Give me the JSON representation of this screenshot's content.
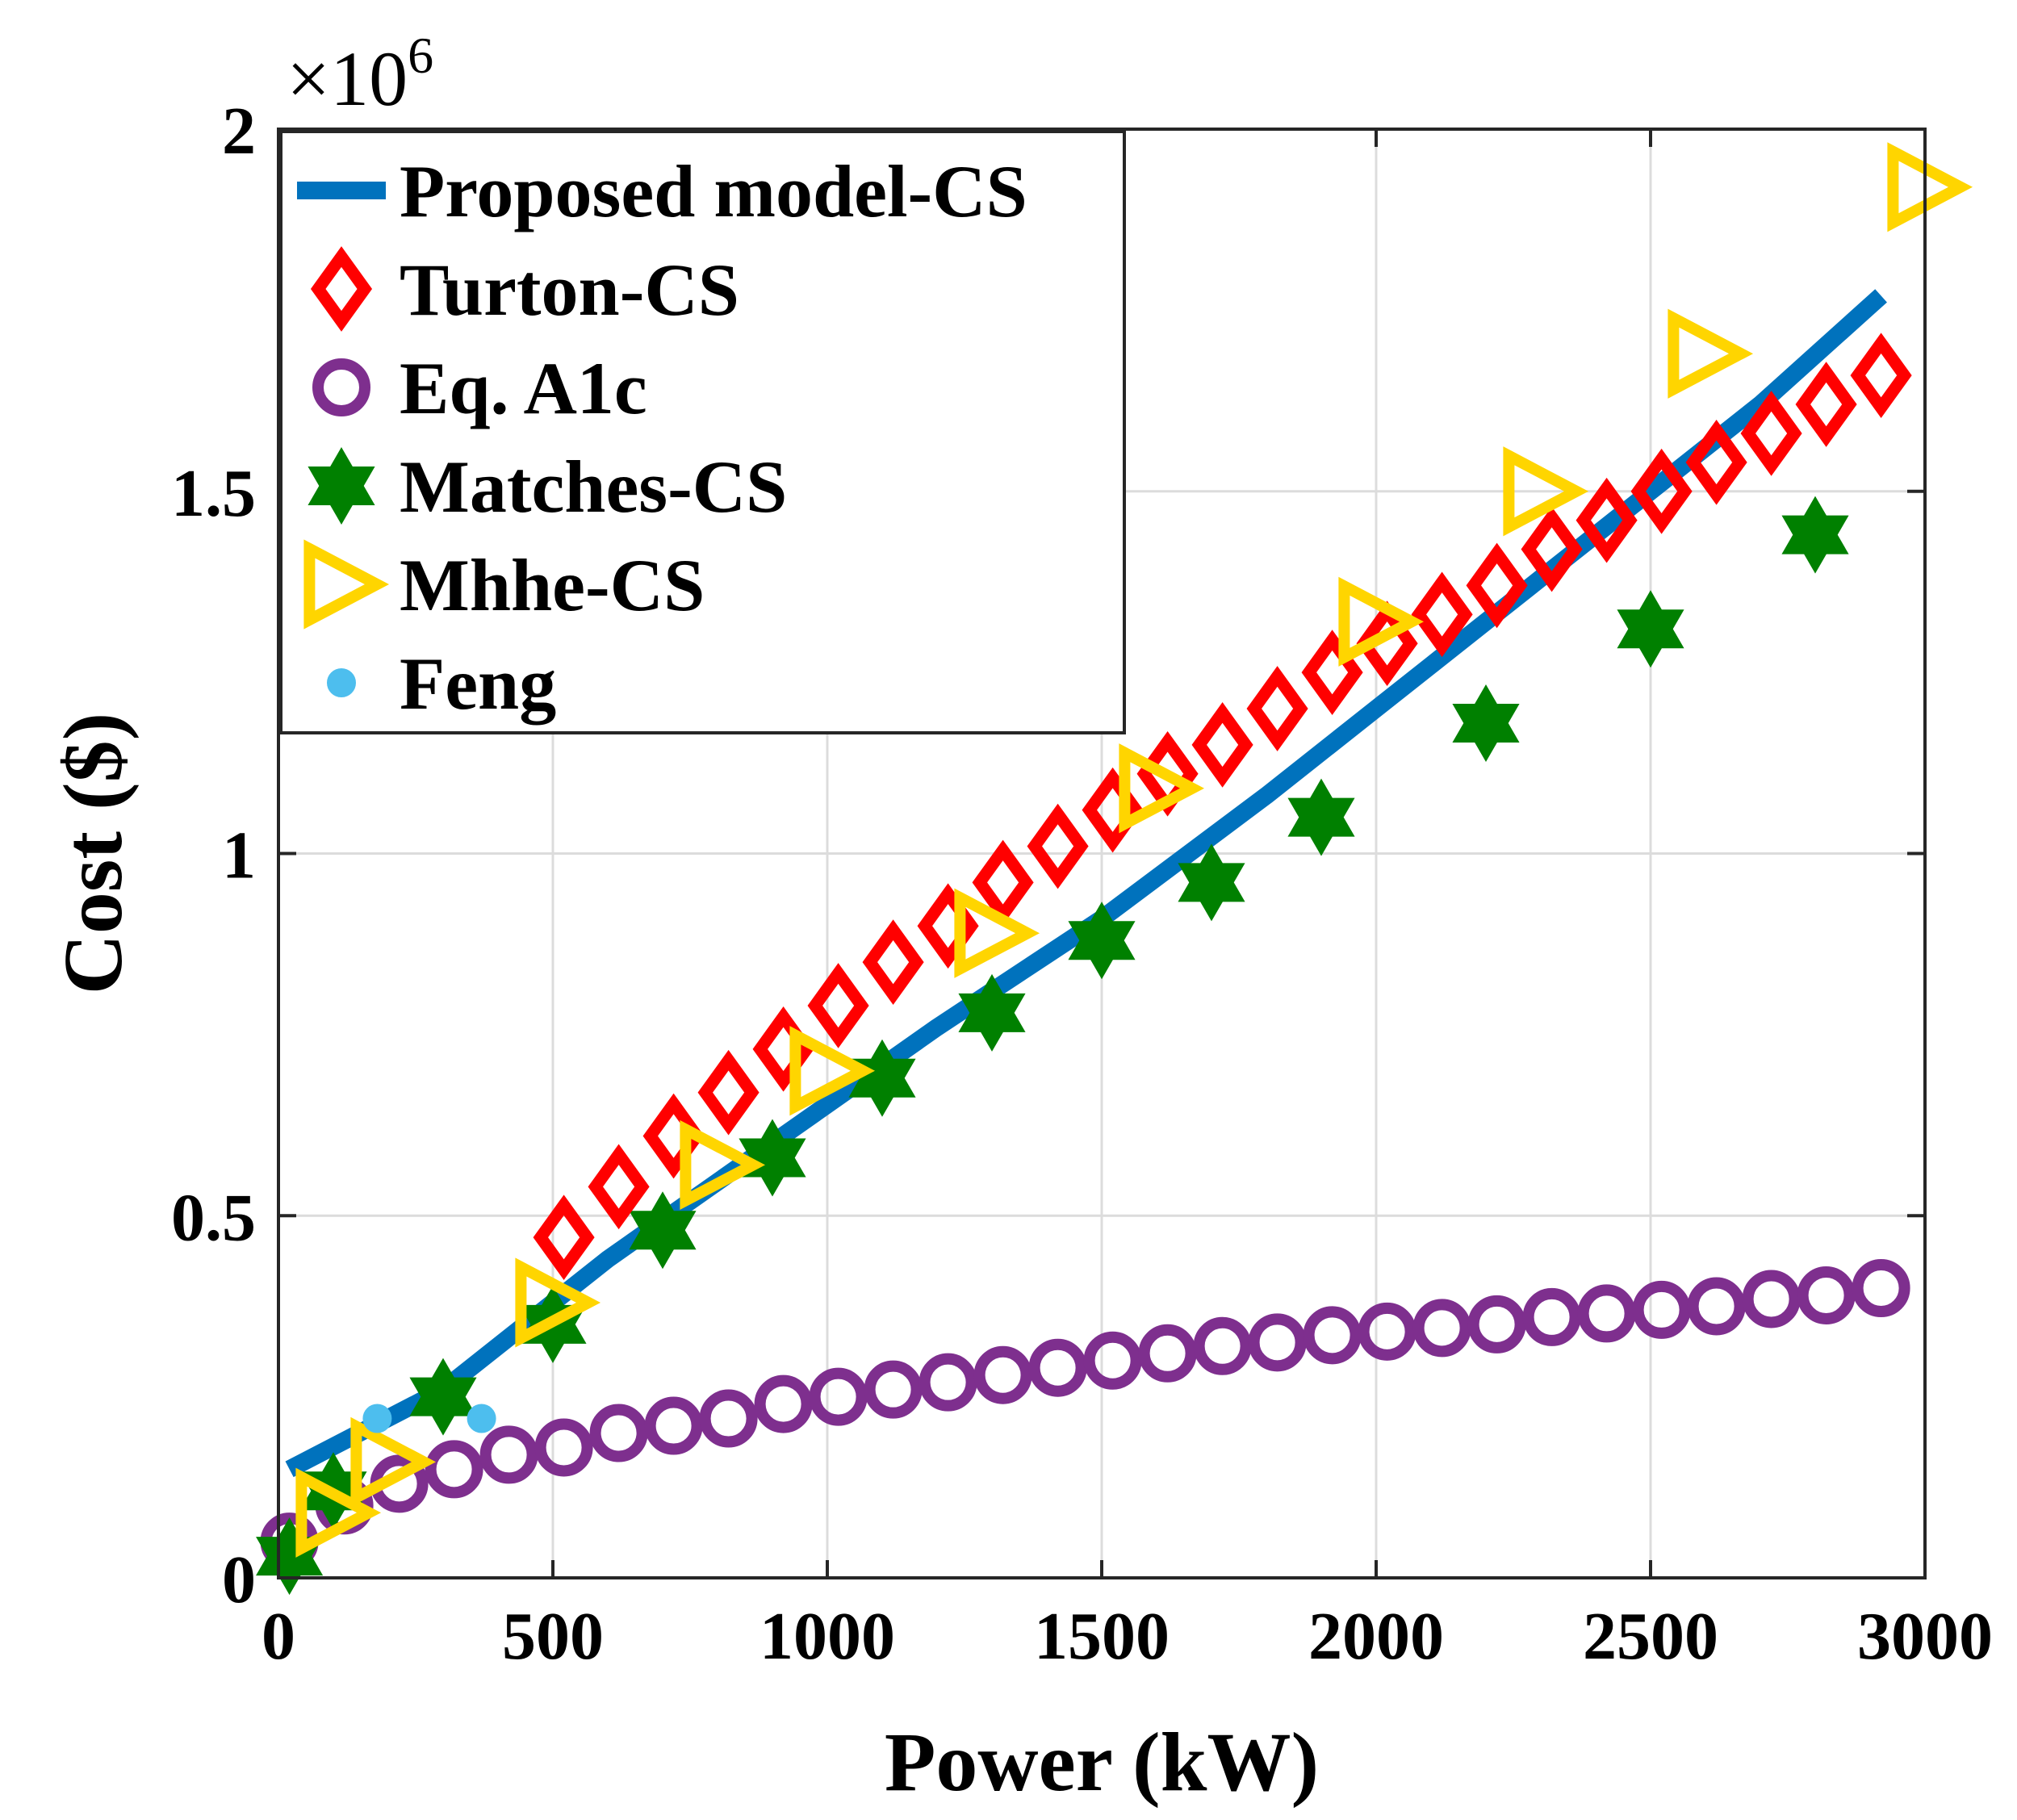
{
  "chart_data": {
    "type": "scatter",
    "title": "",
    "xlabel": "Power (kW)",
    "ylabel": "Cost ($)",
    "xlim": [
      0,
      3000
    ],
    "ylim": [
      0,
      2000000
    ],
    "x_ticks": [
      0,
      500,
      1000,
      1500,
      2000,
      2500,
      3000
    ],
    "y_ticks": [
      0,
      0.5,
      1,
      1.5,
      2
    ],
    "y_tick_labels": [
      "0",
      "0.5",
      "1",
      "1.5",
      "2"
    ],
    "y_multiplier_base": "×10",
    "y_multiplier_exp": "6",
    "y_scale": 1000000,
    "grid": true,
    "legend_position": "top-left",
    "series": [
      {
        "name": "Proposed model-CS",
        "marker": "line",
        "color": "#0072BD",
        "x": [
          20,
          300,
          600,
          900,
          1200,
          1500,
          1800,
          2100,
          2400,
          2700,
          2920
        ],
        "y": [
          150000,
          260000,
          440000,
          600000,
          760000,
          910000,
          1080000,
          1260000,
          1440000,
          1620000,
          1770000
        ]
      },
      {
        "name": "Turton-CS",
        "marker": "diamond",
        "color": "#FF0000",
        "x": [
          520,
          620,
          720,
          820,
          920,
          1020,
          1120,
          1220,
          1320,
          1420,
          1520,
          1620,
          1720,
          1820,
          1920,
          2020,
          2120,
          2220,
          2320,
          2420,
          2520,
          2620,
          2720,
          2820,
          2920
        ],
        "y": [
          470000,
          540000,
          610000,
          670000,
          730000,
          790000,
          850000,
          900000,
          960000,
          1010000,
          1060000,
          1110000,
          1150000,
          1200000,
          1250000,
          1290000,
          1330000,
          1370000,
          1420000,
          1460000,
          1500000,
          1540000,
          1580000,
          1620000,
          1660000
        ]
      },
      {
        "name": "Eq. A1c",
        "marker": "circle",
        "color": "#7E2F8E",
        "x": [
          20,
          120,
          220,
          320,
          420,
          520,
          620,
          720,
          820,
          920,
          1020,
          1120,
          1220,
          1320,
          1420,
          1520,
          1620,
          1720,
          1820,
          1920,
          2020,
          2120,
          2220,
          2320,
          2420,
          2520,
          2620,
          2720,
          2820,
          2920
        ],
        "y": [
          50000,
          100000,
          130000,
          150000,
          170000,
          180000,
          200000,
          210000,
          220000,
          240000,
          250000,
          260000,
          270000,
          280000,
          290000,
          300000,
          310000,
          320000,
          325000,
          335000,
          340000,
          345000,
          350000,
          360000,
          365000,
          370000,
          375000,
          385000,
          390000,
          400000
        ]
      },
      {
        "name": "Matches-CS",
        "marker": "hexagram",
        "color": "#008000",
        "x": [
          20,
          100,
          300,
          500,
          700,
          900,
          1100,
          1300,
          1500,
          1700,
          1900,
          2200,
          2500,
          2800
        ],
        "y": [
          30000,
          120000,
          250000,
          350000,
          480000,
          580000,
          690000,
          780000,
          880000,
          960000,
          1050000,
          1180000,
          1310000,
          1440000
        ]
      },
      {
        "name": "Mhhe-CS",
        "marker": "triangle-right",
        "color": "#FFD500",
        "x": [
          100,
          200,
          500,
          800,
          1000,
          1300,
          1600,
          2000,
          2300,
          2600,
          3000
        ],
        "y": [
          90000,
          160000,
          380000,
          570000,
          700000,
          890000,
          1090000,
          1320000,
          1500000,
          1690000,
          1920000
        ]
      },
      {
        "name": "Feng",
        "marker": "dot",
        "color": "#4DBEEE",
        "x": [
          180,
          370
        ],
        "y": [
          220000,
          220000
        ]
      }
    ]
  }
}
